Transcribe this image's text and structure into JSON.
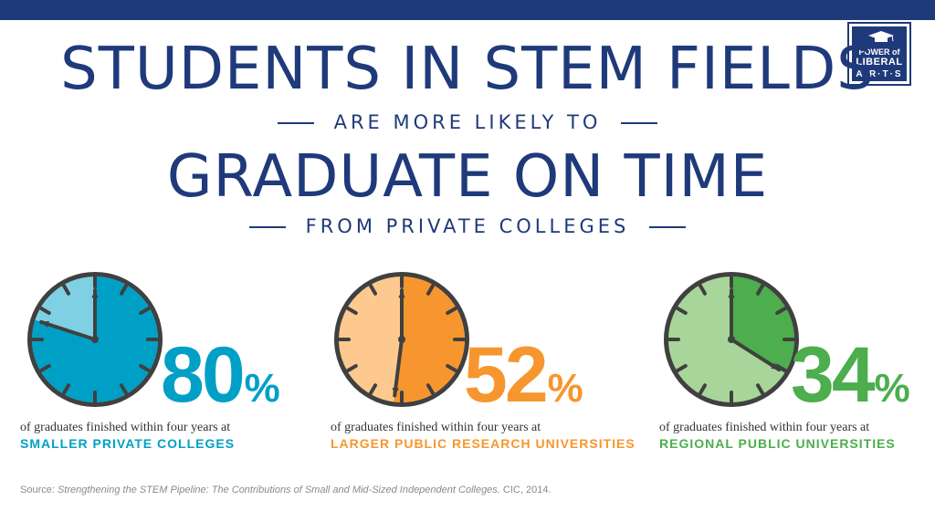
{
  "header": {
    "line1": "STUDENTS IN STEM FIELDS",
    "line2": "ARE MORE LIKELY TO",
    "line3": "GRADUATE ON TIME",
    "line4": "FROM PRIVATE COLLEGES"
  },
  "logo": {
    "line1": "POWER of",
    "line2": "LIBERAL",
    "line3": "A·R·T·S"
  },
  "stats": [
    {
      "percent": 80,
      "number": "80",
      "symbol": "%",
      "caption": "of graduates finished within four years at",
      "institution": "SMALLER PRIVATE COLLEGES",
      "color": "#00a0c6",
      "light": "#7fd0e3"
    },
    {
      "percent": 52,
      "number": "52",
      "symbol": "%",
      "caption": "of graduates finished within four years at",
      "institution": "LARGER PUBLIC RESEARCH UNIVERSITIES",
      "color": "#f7962f",
      "light": "#fdc98f"
    },
    {
      "percent": 34,
      "number": "34",
      "symbol": "%",
      "caption": "of graduates finished within four years at",
      "institution": "REGIONAL PUBLIC UNIVERSITIES",
      "color": "#4cae4c",
      "light": "#a8d69a"
    }
  ],
  "source": {
    "prefix": "Source: ",
    "title": "Strengthening the STEM Pipeline: The Contributions of Small and Mid-Sized Independent Colleges.",
    "suffix": " CIC, 2014."
  },
  "colors": {
    "navy": "#1f3a7a",
    "clock_frame": "#404040",
    "hands": "#404040"
  }
}
